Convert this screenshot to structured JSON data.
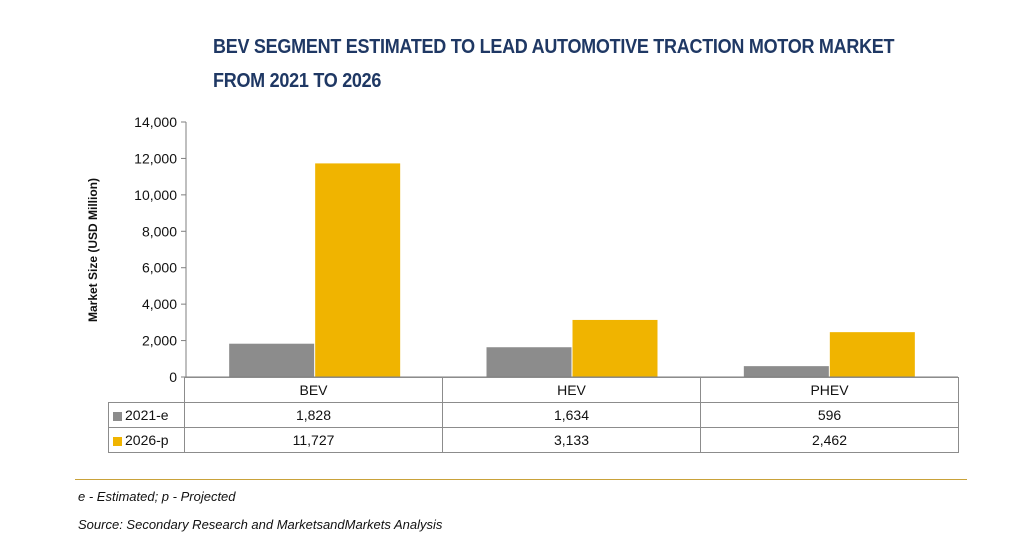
{
  "title_line1": "BEV SEGMENT ESTIMATED TO LEAD AUTOMOTIVE TRACTION MOTOR MARKET",
  "title_line2": "FROM 2021 TO 2026",
  "footnote": "e - Estimated; p - Projected",
  "source": "Source: Secondary Research and MarketsandMarkets Analysis",
  "colors": {
    "series1": "#8c8c8c",
    "series2": "#f0b400",
    "axis": "#7f7f7f",
    "rule": "#c9a23a",
    "title": "#1f3864"
  },
  "chart_data": {
    "type": "bar",
    "title": "BEV SEGMENT ESTIMATED TO LEAD AUTOMOTIVE TRACTION MOTOR MARKET FROM 2021 TO 2026",
    "xlabel": "",
    "ylabel": "Market Size (USD Million)",
    "ylim": [
      0,
      14000
    ],
    "yticks": [
      0,
      2000,
      4000,
      6000,
      8000,
      10000,
      12000,
      14000
    ],
    "ytick_labels": [
      "0",
      "2,000",
      "4,000",
      "6,000",
      "8,000",
      "10,000",
      "12,000",
      "14,000"
    ],
    "categories": [
      "BEV",
      "HEV",
      "PHEV"
    ],
    "series": [
      {
        "name": "2021-e",
        "values": [
          1828,
          1634,
          596
        ],
        "labels": [
          "1,828",
          "1,634",
          "596"
        ]
      },
      {
        "name": "2026-p",
        "values": [
          11727,
          3133,
          2462
        ],
        "labels": [
          "11,727",
          "3,133",
          "2,462"
        ]
      }
    ],
    "grid": false,
    "legend": "data table below chart"
  }
}
